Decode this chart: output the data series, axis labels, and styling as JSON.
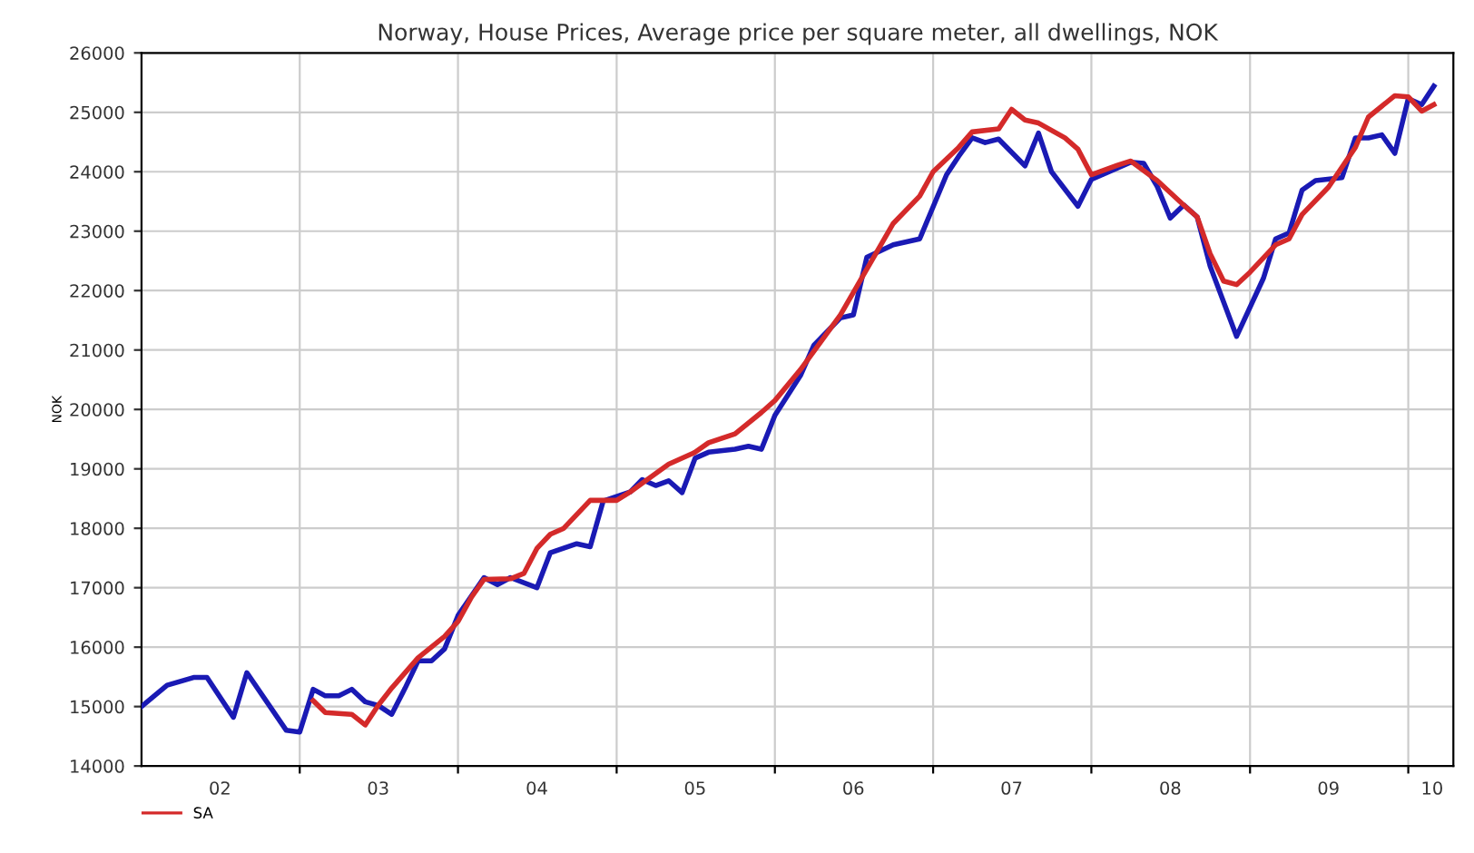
{
  "chart_data": {
    "type": "line",
    "title": "Norway, House Prices, Average price per square meter, all dwellings, NOK",
    "ylabel": "NOK",
    "xlim": [
      "2002-01-01",
      "2010-04-15"
    ],
    "ylim": [
      14000,
      26000
    ],
    "yticks": [
      14000,
      15000,
      16000,
      17000,
      18000,
      19000,
      20000,
      21000,
      22000,
      23000,
      24000,
      25000,
      26000
    ],
    "xticks": [
      {
        "value": "2003-01-01",
        "label": null
      },
      {
        "value": "2004-01-01",
        "label": null
      },
      {
        "value": "2005-01-01",
        "label": null
      },
      {
        "value": "2006-01-01",
        "label": null
      },
      {
        "value": "2007-01-01",
        "label": null
      },
      {
        "value": "2008-01-01",
        "label": null
      },
      {
        "value": "2009-01-01",
        "label": null
      },
      {
        "value": "2010-01-01",
        "label": null
      },
      {
        "value": "2002-07-01",
        "label": "02"
      },
      {
        "value": "2003-07-01",
        "label": "03"
      },
      {
        "value": "2004-07-01",
        "label": "04"
      },
      {
        "value": "2005-07-01",
        "label": "05"
      },
      {
        "value": "2006-07-01",
        "label": "06"
      },
      {
        "value": "2007-07-01",
        "label": "07"
      },
      {
        "value": "2008-07-01",
        "label": "08"
      },
      {
        "value": "2009-07-01",
        "label": "09"
      },
      {
        "value": "2010-02-25",
        "label": "10"
      }
    ],
    "grid": true,
    "legend": "bottom left",
    "marker": "none",
    "line_style": "solid",
    "series": [
      {
        "color": "#1a1ab4",
        "x": [
          "2002-01",
          "2002-03",
          "2002-05",
          "2002-06",
          "2002-08",
          "2002-09",
          "2002-12",
          "2003-01",
          "2003-02",
          "2003-03",
          "2003-04",
          "2003-05",
          "2003-06",
          "2003-07",
          "2003-08",
          "2003-09",
          "2003-10",
          "2003-11",
          "2003-12",
          "2004-01",
          "2004-02",
          "2004-03",
          "2004-04",
          "2004-05",
          "2004-07",
          "2004-08",
          "2004-10",
          "2004-11",
          "2004-12",
          "2005-02",
          "2005-03",
          "2005-04",
          "2005-05",
          "2005-06",
          "2005-07",
          "2005-08",
          "2005-10",
          "2005-11",
          "2005-12",
          "2006-01",
          "2006-03",
          "2006-04",
          "2006-06",
          "2006-07",
          "2006-08",
          "2006-10",
          "2006-12",
          "2007-02",
          "2007-03",
          "2007-04",
          "2007-05",
          "2007-06",
          "2007-08",
          "2007-09",
          "2007-10",
          "2007-12",
          "2008-01",
          "2008-03",
          "2008-04",
          "2008-05",
          "2008-06",
          "2008-07",
          "2008-08",
          "2008-09",
          "2008-10",
          "2008-12",
          "2009-02",
          "2009-03",
          "2009-04",
          "2009-05",
          "2009-06",
          "2009-08",
          "2009-09",
          "2009-10",
          "2009-11",
          "2009-12",
          "2010-01",
          "2010-02",
          "2010-03"
        ],
        "values": [
          15000,
          15360,
          15490,
          15490,
          14820,
          15570,
          14600,
          14570,
          15290,
          15180,
          15180,
          15290,
          15080,
          15020,
          14870,
          15310,
          15770,
          15770,
          15970,
          16530,
          16860,
          17170,
          17050,
          17170,
          17000,
          17590,
          17740,
          17690,
          18460,
          18610,
          18820,
          18720,
          18800,
          18600,
          19180,
          19280,
          19330,
          19380,
          19330,
          19900,
          20570,
          21080,
          21540,
          21590,
          22560,
          22770,
          22870,
          23950,
          24260,
          24570,
          24490,
          24550,
          24100,
          24650,
          24000,
          23420,
          23870,
          24060,
          24160,
          24140,
          23750,
          23220,
          23440,
          23240,
          22410,
          21230,
          22210,
          22870,
          22970,
          23690,
          23850,
          23900,
          24570,
          24570,
          24620,
          24310,
          25230,
          25130,
          25440
        ]
      },
      {
        "name": "SA",
        "color": "#d42a2a",
        "x": [
          "2003-02",
          "2003-03",
          "2003-05",
          "2003-06",
          "2003-07",
          "2003-08",
          "2003-10",
          "2003-12",
          "2004-01",
          "2004-02",
          "2004-03",
          "2004-05",
          "2004-06",
          "2004-07",
          "2004-08",
          "2004-09",
          "2004-11",
          "2005-01",
          "2005-02",
          "2005-03",
          "2005-05",
          "2005-07",
          "2005-08",
          "2005-10",
          "2005-12",
          "2006-01",
          "2006-03",
          "2006-06",
          "2006-08",
          "2006-10",
          "2006-12",
          "2007-01",
          "2007-03",
          "2007-04",
          "2007-06",
          "2007-07",
          "2007-08",
          "2007-09",
          "2007-11",
          "2007-12",
          "2008-01",
          "2008-03",
          "2008-04",
          "2008-06",
          "2008-08",
          "2008-09",
          "2008-10",
          "2008-11",
          "2008-12",
          "2009-01",
          "2009-03",
          "2009-04",
          "2009-05",
          "2009-07",
          "2009-09",
          "2009-10",
          "2009-12",
          "2010-01",
          "2010-02",
          "2010-03"
        ],
        "values": [
          15100,
          14900,
          14870,
          14690,
          15020,
          15310,
          15820,
          16180,
          16430,
          16840,
          17140,
          17150,
          17240,
          17660,
          17900,
          18000,
          18470,
          18470,
          18610,
          18760,
          19080,
          19280,
          19440,
          19590,
          19950,
          20150,
          20670,
          21590,
          22360,
          23130,
          23590,
          24000,
          24410,
          24670,
          24720,
          25050,
          24870,
          24820,
          24570,
          24380,
          23950,
          24110,
          24180,
          23850,
          23440,
          23240,
          22620,
          22160,
          22100,
          22310,
          22770,
          22870,
          23280,
          23740,
          24410,
          24920,
          25280,
          25260,
          25020,
          25130
        ]
      }
    ]
  }
}
